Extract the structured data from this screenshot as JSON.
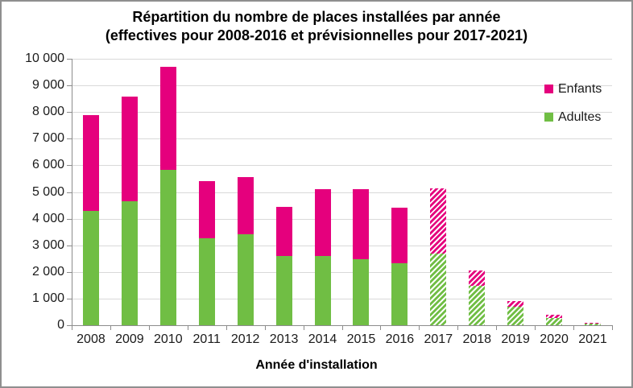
{
  "title": {
    "line1": "Répartition du nombre de places installées par année",
    "line2": "(effectives pour 2008-2016 et prévisionnelles pour 2017-2021)"
  },
  "legend": [
    {
      "label": "Enfants",
      "color": "#e5007d"
    },
    {
      "label": "Adultes",
      "color": "#70be44"
    }
  ],
  "chart_data": {
    "type": "bar",
    "stacked": true,
    "title": "Répartition du nombre de places installées par année (effectives pour 2008-2016 et prévisionnelles pour 2017-2021)",
    "xlabel": "Année d'installation",
    "ylabel": "",
    "ylim": [
      0,
      10000
    ],
    "ytick_step": 1000,
    "grid": "horizontal",
    "legend_position": "top-right",
    "categories": [
      "2008",
      "2009",
      "2010",
      "2011",
      "2012",
      "2013",
      "2014",
      "2015",
      "2016",
      "2017",
      "2018",
      "2019",
      "2020",
      "2021"
    ],
    "series": [
      {
        "name": "Adultes",
        "color": "#70be44",
        "values": [
          4300,
          4650,
          5820,
          3250,
          3420,
          2610,
          2600,
          2490,
          2330,
          2700,
          1480,
          680,
          270,
          50
        ]
      },
      {
        "name": "Enfants",
        "color": "#e5007d",
        "values": [
          3590,
          3920,
          3890,
          2170,
          2140,
          1830,
          2510,
          2610,
          2080,
          2450,
          570,
          220,
          130,
          40
        ]
      }
    ],
    "hatched_forecast_categories": [
      "2017",
      "2018",
      "2019",
      "2020",
      "2021"
    ],
    "y_axis": {
      "tick_labels": [
        "0",
        "1 000",
        "2 000",
        "3 000",
        "4 000",
        "5 000",
        "6 000",
        "7 000",
        "8 000",
        "9 000",
        "10 000"
      ]
    }
  }
}
